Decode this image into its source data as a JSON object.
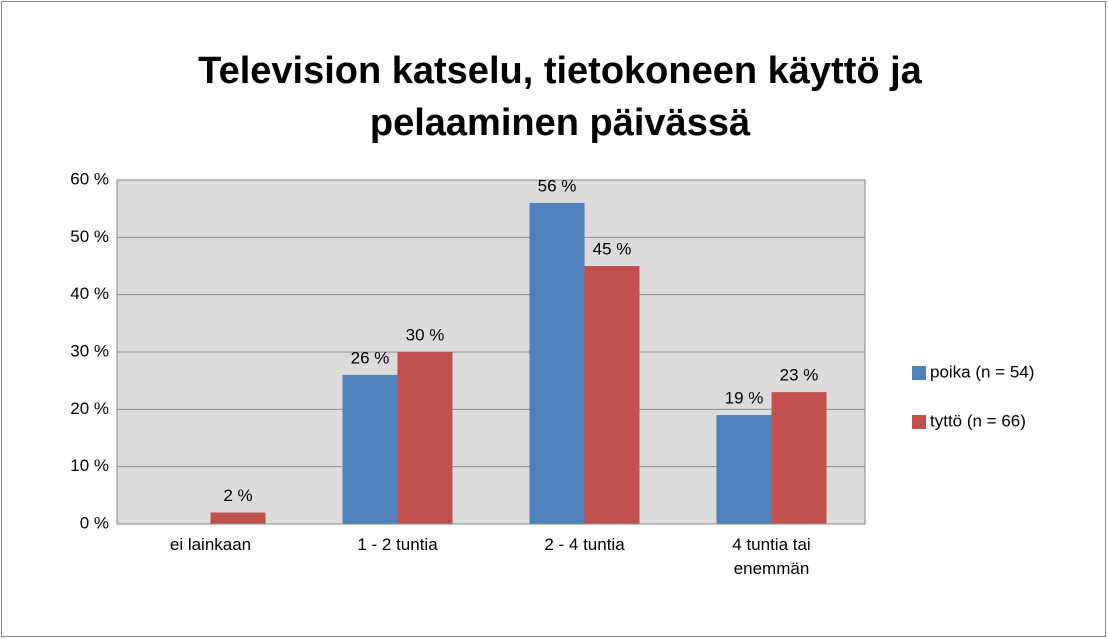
{
  "chart_data": {
    "type": "bar",
    "title": "Television katselu, tietokoneen käyttö ja pelaaminen päivässä",
    "categories": [
      "ei lainkaan",
      "1 - 2 tuntia",
      "2 - 4 tuntia",
      "4 tuntia tai enemmän"
    ],
    "series": [
      {
        "name": "poika (n = 54)",
        "color": "#4f81bd",
        "values": [
          null,
          26,
          56,
          19
        ],
        "value_labels": [
          null,
          "26 %",
          "56 %",
          "19 %"
        ]
      },
      {
        "name": "tyttö (n = 66)",
        "color": "#c0504d",
        "values": [
          2,
          30,
          45,
          23
        ],
        "value_labels": [
          "2 %",
          "30 %",
          "45 %",
          "23 %"
        ]
      }
    ],
    "ylim": [
      0,
      60
    ],
    "yticks": [
      {
        "value": 0,
        "label": "0 %"
      },
      {
        "value": 10,
        "label": "10 %"
      },
      {
        "value": 20,
        "label": "20 %"
      },
      {
        "value": 30,
        "label": "30 %"
      },
      {
        "value": 40,
        "label": "40 %"
      },
      {
        "value": 50,
        "label": "50 %"
      },
      {
        "value": 60,
        "label": "60 %"
      }
    ],
    "grid": true,
    "legend": "right"
  }
}
